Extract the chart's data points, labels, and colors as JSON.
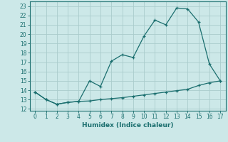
{
  "xlabel": "Humidex (Indice chaleur)",
  "background_color": "#cce8e8",
  "grid_color": "#aacccc",
  "line_color": "#1a6e6e",
  "x_upper": [
    0,
    1,
    2,
    3,
    4,
    5,
    6,
    7,
    8,
    9,
    10,
    11,
    12,
    13,
    14,
    15,
    16,
    17
  ],
  "y_upper": [
    13.8,
    13.0,
    12.5,
    12.7,
    12.8,
    15.0,
    14.4,
    17.1,
    17.8,
    17.5,
    19.8,
    21.5,
    21.0,
    22.8,
    22.7,
    21.3,
    16.8,
    15.0
  ],
  "x_lower": [
    0,
    1,
    2,
    3,
    4,
    5,
    6,
    7,
    8,
    9,
    10,
    11,
    12,
    13,
    14,
    15,
    16,
    17
  ],
  "y_lower": [
    13.8,
    13.0,
    12.5,
    12.7,
    12.8,
    12.85,
    13.0,
    13.1,
    13.2,
    13.35,
    13.5,
    13.65,
    13.8,
    13.95,
    14.1,
    14.5,
    14.8,
    15.0
  ],
  "ylim": [
    11.8,
    23.5
  ],
  "xlim": [
    -0.5,
    17.5
  ],
  "yticks": [
    12,
    13,
    14,
    15,
    16,
    17,
    18,
    19,
    20,
    21,
    22,
    23
  ],
  "xticks": [
    0,
    1,
    2,
    3,
    4,
    5,
    6,
    7,
    8,
    9,
    10,
    11,
    12,
    13,
    14,
    15,
    16,
    17
  ]
}
